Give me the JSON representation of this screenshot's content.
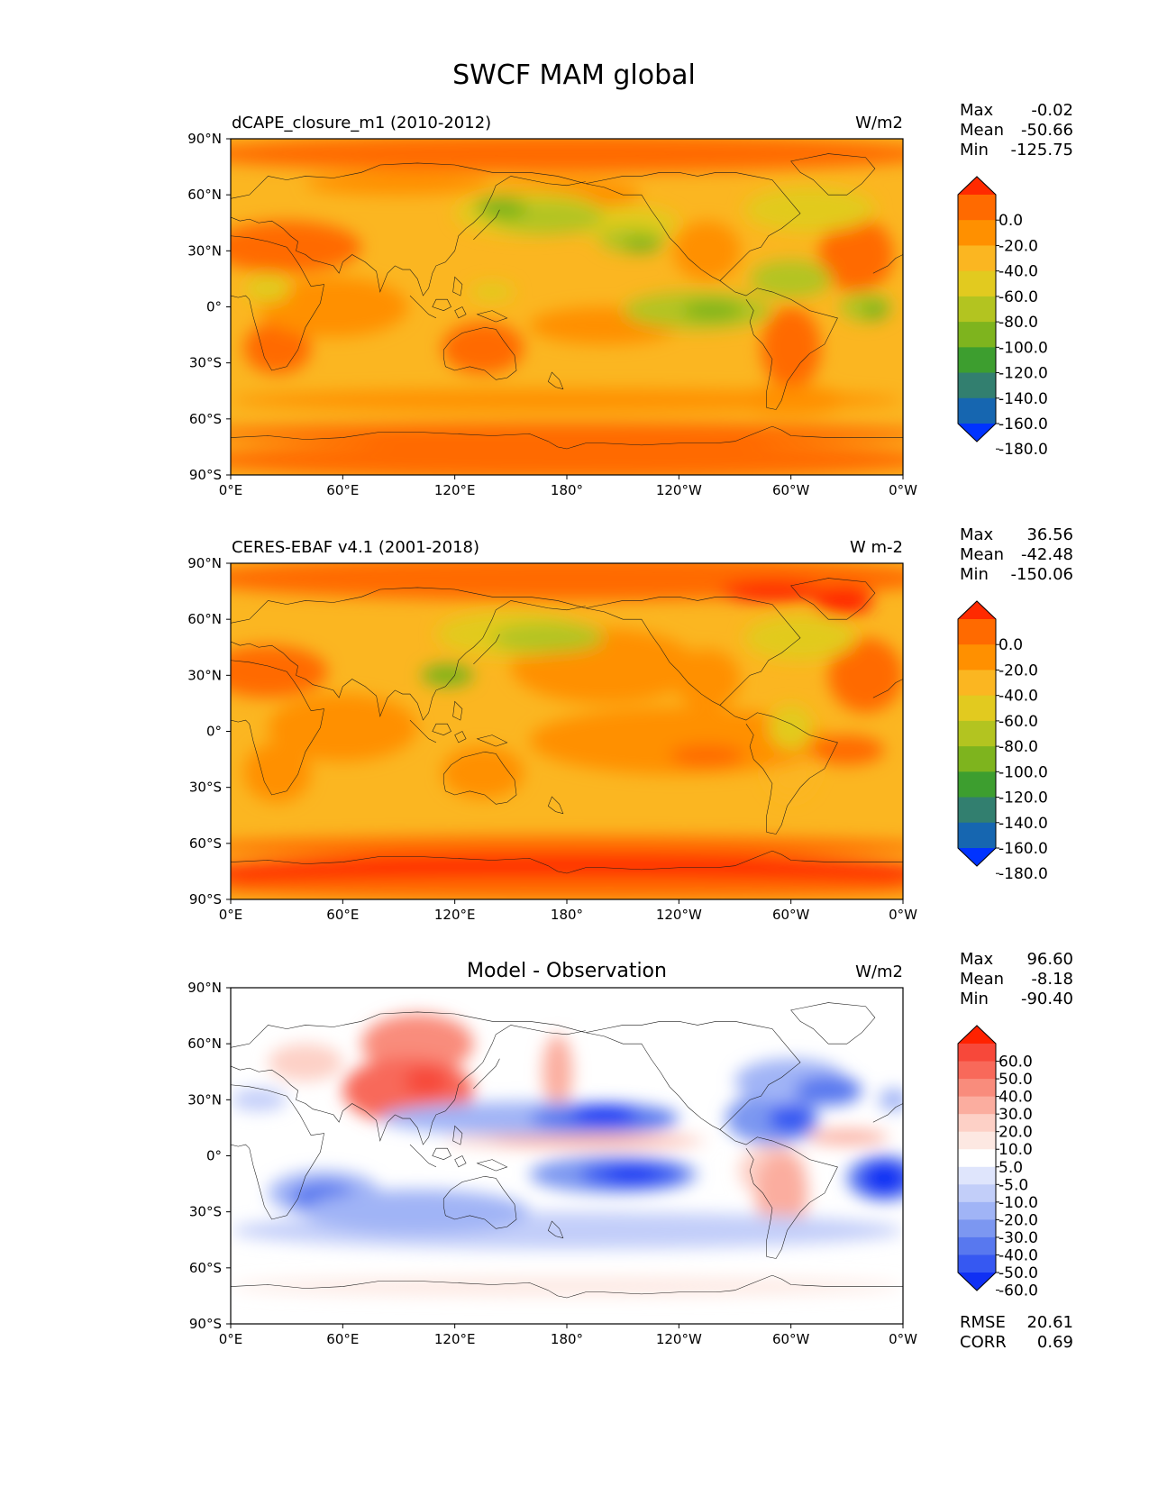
{
  "figure": {
    "title": "SWCF MAM global"
  },
  "panels": [
    {
      "name": "model",
      "title_left": "dCAPE_closure_m1 (2010-2012)",
      "title_center": "",
      "units": "W/m2",
      "stats": [
        {
          "label": "Max",
          "value": "-0.02"
        },
        {
          "label": "Mean",
          "value": "-50.66"
        },
        {
          "label": "Min",
          "value": "-125.75"
        }
      ],
      "footer_stats": [],
      "colorbar": {
        "labels": [
          "0.0",
          "-20.0",
          "-40.0",
          "-60.0",
          "-80.0",
          "-100.0",
          "-120.0",
          "-140.0",
          "-160.0",
          "-180.0"
        ],
        "colors": [
          "#ff2a00",
          "#ff6a00",
          "#ff9000",
          "#fbb621",
          "#e2ca1f",
          "#b3c420",
          "#7eb41e",
          "#3d9e2f",
          "#327f6f",
          "#1666b0",
          "#0033ff"
        ]
      },
      "field": "model"
    },
    {
      "name": "obs",
      "title_left": "CERES-EBAF v4.1 (2001-2018)",
      "title_center": "",
      "units": "W m-2",
      "stats": [
        {
          "label": "Max",
          "value": "36.56"
        },
        {
          "label": "Mean",
          "value": "-42.48"
        },
        {
          "label": "Min",
          "value": "-150.06"
        }
      ],
      "footer_stats": [],
      "colorbar": {
        "labels": [
          "0.0",
          "-20.0",
          "-40.0",
          "-60.0",
          "-80.0",
          "-100.0",
          "-120.0",
          "-140.0",
          "-160.0",
          "-180.0"
        ],
        "colors": [
          "#ff2a00",
          "#ff6a00",
          "#ff9000",
          "#fbb621",
          "#e2ca1f",
          "#b3c420",
          "#7eb41e",
          "#3d9e2f",
          "#327f6f",
          "#1666b0",
          "#0033ff"
        ]
      },
      "field": "obs"
    },
    {
      "name": "diff",
      "title_left": "",
      "title_center": "Model - Observation",
      "units": "W/m2",
      "stats": [
        {
          "label": "Max",
          "value": "96.60"
        },
        {
          "label": "Mean",
          "value": "-8.18"
        },
        {
          "label": "Min",
          "value": "-90.40"
        }
      ],
      "footer_stats": [
        {
          "label": "RMSE",
          "value": "20.61"
        },
        {
          "label": "CORR",
          "value": "0.69"
        }
      ],
      "colorbar": {
        "labels": [
          "60.0",
          "50.0",
          "40.0",
          "30.0",
          "20.0",
          "10.0",
          "5.0",
          "-5.0",
          "-10.0",
          "-20.0",
          "-30.0",
          "-40.0",
          "-50.0",
          "-60.0"
        ],
        "colors": [
          "#ff2200",
          "#f7483a",
          "#f8695a",
          "#f98c7c",
          "#fbad9f",
          "#fdd0c6",
          "#fde8e2",
          "#ffffff",
          "#dfe5fc",
          "#c2cef9",
          "#a0b4f6",
          "#7c97f1",
          "#5878ef",
          "#3658f2",
          "#1030f4"
        ]
      },
      "field": "diff"
    }
  ],
  "chart_data": [
    {
      "type": "heatmap",
      "title": "dCAPE_closure_m1 (2010-2012)",
      "units": "W/m2",
      "x_ticks": [
        "0°E",
        "60°E",
        "120°E",
        "180°",
        "120°W",
        "60°W",
        "0°W"
      ],
      "y_ticks": [
        "90°N",
        "60°N",
        "30°N",
        "0°",
        "30°S",
        "60°S",
        "90°S"
      ],
      "xlim": [
        0,
        360
      ],
      "ylim": [
        -90,
        90
      ],
      "max": -0.02,
      "mean": -50.66,
      "min": -125.75,
      "levels": [
        0,
        -20,
        -40,
        -60,
        -80,
        -100,
        -120,
        -140,
        -160,
        -180
      ]
    },
    {
      "type": "heatmap",
      "title": "CERES-EBAF v4.1 (2001-2018)",
      "units": "W m-2",
      "x_ticks": [
        "0°E",
        "60°E",
        "120°E",
        "180°",
        "120°W",
        "60°W",
        "0°W"
      ],
      "y_ticks": [
        "90°N",
        "60°N",
        "30°N",
        "0°",
        "30°S",
        "60°S",
        "90°S"
      ],
      "xlim": [
        0,
        360
      ],
      "ylim": [
        -90,
        90
      ],
      "max": 36.56,
      "mean": -42.48,
      "min": -150.06,
      "levels": [
        0,
        -20,
        -40,
        -60,
        -80,
        -100,
        -120,
        -140,
        -160,
        -180
      ]
    },
    {
      "type": "heatmap",
      "title": "Model - Observation",
      "units": "W/m2",
      "x_ticks": [
        "0°E",
        "60°E",
        "120°E",
        "180°",
        "120°W",
        "60°W",
        "0°W"
      ],
      "y_ticks": [
        "90°N",
        "60°N",
        "30°N",
        "0°",
        "30°S",
        "60°S",
        "90°S"
      ],
      "xlim": [
        0,
        360
      ],
      "ylim": [
        -90,
        90
      ],
      "max": 96.6,
      "mean": -8.18,
      "min": -90.4,
      "rmse": 20.61,
      "corr": 0.69,
      "levels": [
        60,
        50,
        40,
        30,
        20,
        10,
        5,
        -5,
        -10,
        -20,
        -30,
        -40,
        -50,
        -60
      ]
    }
  ]
}
